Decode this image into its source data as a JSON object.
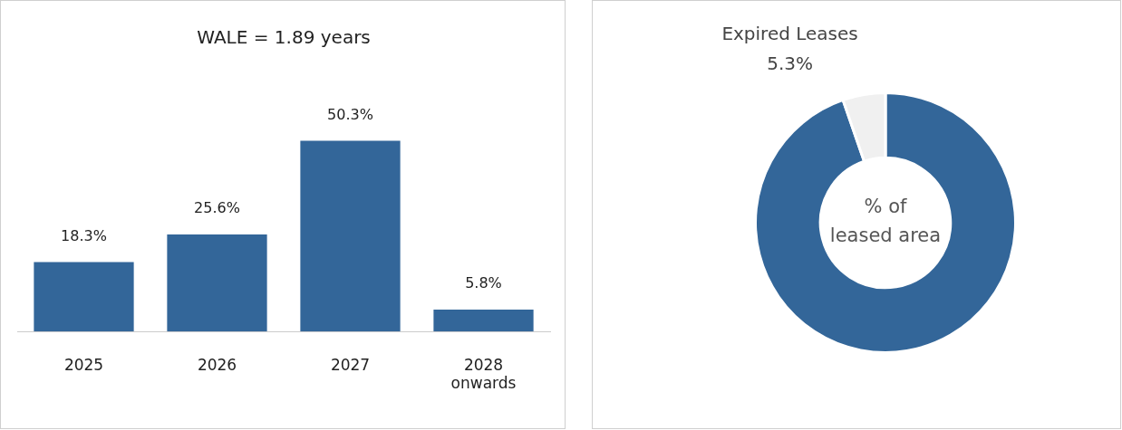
{
  "chart_data": [
    {
      "type": "bar",
      "title": "WALE = 1.89 years",
      "categories": [
        "2025",
        "2026",
        "2027",
        "2028\nonwards"
      ],
      "values": [
        18.3,
        25.6,
        50.3,
        5.8
      ],
      "color": "#336699",
      "value_labels": [
        "18.3%",
        "25.6%",
        "50.3%",
        "5.8%"
      ],
      "grid": false,
      "legend": false,
      "tick_labels": "x"
    },
    {
      "type": "donut",
      "categories": [
        null,
        "Expired Leases"
      ],
      "values": [
        94.7,
        5.3
      ],
      "colors": [
        "#336699",
        "#f0f0f0"
      ],
      "value_labels": [
        null,
        "5.3%"
      ],
      "annotations": [
        "% of\nleased area"
      ],
      "legend": false
    }
  ]
}
